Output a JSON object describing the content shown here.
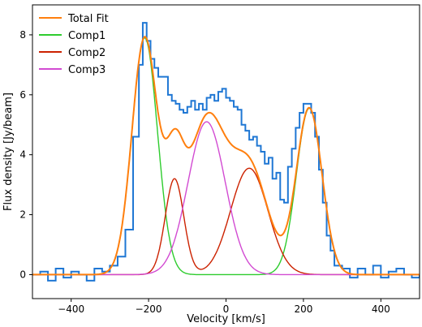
{
  "chart_data": {
    "type": "line",
    "xlabel": "Velocity [km/s]",
    "ylabel": "Flux density [Jy/beam]",
    "xlim": [
      -500,
      500
    ],
    "ylim": [
      -0.8,
      9.0
    ],
    "xticks": [
      -400,
      -200,
      0,
      200,
      400
    ],
    "yticks": [
      0,
      2,
      4,
      6,
      8
    ],
    "grid": false,
    "legend_position": "top-left",
    "legend": [
      "Total Fit",
      "Comp1",
      "Comp2",
      "Comp3"
    ],
    "observed_spectrum": {
      "color": "#1f77d4",
      "x": [
        -500,
        -480,
        -460,
        -440,
        -420,
        -400,
        -380,
        -360,
        -340,
        -320,
        -300,
        -280,
        -260,
        -240,
        -225,
        -215,
        -205,
        -195,
        -185,
        -175,
        -165,
        -150,
        -140,
        -130,
        -120,
        -110,
        -100,
        -90,
        -80,
        -70,
        -60,
        -50,
        -40,
        -30,
        -20,
        -10,
        0,
        10,
        20,
        30,
        40,
        50,
        60,
        70,
        80,
        90,
        100,
        110,
        120,
        130,
        140,
        150,
        160,
        170,
        180,
        190,
        200,
        210,
        220,
        230,
        240,
        250,
        260,
        270,
        280,
        300,
        320,
        340,
        360,
        380,
        400,
        420,
        440,
        460,
        480,
        500
      ],
      "y": [
        0.0,
        0.1,
        -0.2,
        0.2,
        -0.1,
        0.1,
        0.0,
        -0.2,
        0.2,
        0.1,
        0.3,
        0.6,
        1.5,
        4.6,
        7.0,
        8.4,
        7.8,
        7.2,
        6.9,
        6.6,
        6.6,
        6.0,
        5.8,
        5.7,
        5.5,
        5.4,
        5.6,
        5.8,
        5.5,
        5.7,
        5.5,
        5.9,
        6.0,
        5.8,
        6.1,
        6.2,
        5.9,
        5.8,
        5.6,
        5.5,
        5.0,
        4.8,
        4.5,
        4.6,
        4.3,
        4.1,
        3.7,
        3.9,
        3.2,
        3.4,
        2.5,
        2.4,
        3.6,
        4.2,
        4.9,
        5.4,
        5.7,
        5.7,
        5.4,
        4.6,
        3.5,
        2.4,
        1.3,
        0.8,
        0.3,
        0.2,
        -0.1,
        0.2,
        0.0,
        0.3,
        -0.1,
        0.1,
        0.2,
        0.0,
        -0.1,
        0.0
      ]
    },
    "series": [
      {
        "name": "Total Fit",
        "color": "#ff7f0e",
        "components": [
          "Comp1",
          "Comp2",
          "Comp3"
        ]
      },
      {
        "name": "Comp1",
        "color": "#2ecc2e",
        "gaussians": [
          {
            "amp": 7.9,
            "center": -210,
            "sigma": 33
          },
          {
            "amp": 5.55,
            "center": 215,
            "sigma": 33
          }
        ]
      },
      {
        "name": "Comp2",
        "color": "#cc2200",
        "gaussians": [
          {
            "amp": 3.2,
            "center": -133,
            "sigma": 24
          },
          {
            "amp": 3.55,
            "center": 60,
            "sigma": 48
          }
        ]
      },
      {
        "name": "Comp3",
        "color": "#d24bd2",
        "gaussians": [
          {
            "amp": 5.1,
            "center": -50,
            "sigma": 48
          }
        ]
      }
    ]
  }
}
